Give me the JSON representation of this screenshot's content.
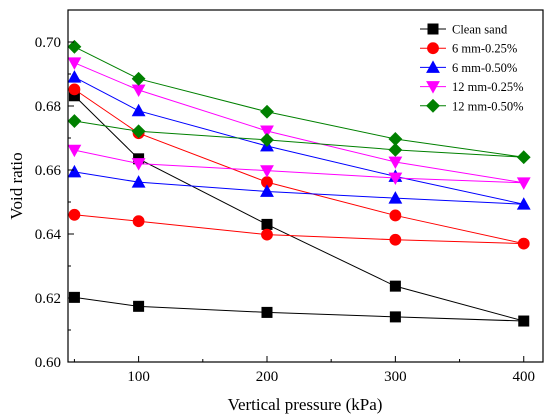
{
  "chart_data": {
    "type": "line",
    "xlabel": "Vertical pressure (kPa)",
    "ylabel": "Void ratio",
    "xlim": [
      45,
      415
    ],
    "ylim": [
      0.6,
      0.71
    ],
    "xticks": [
      100,
      200,
      300,
      400
    ],
    "xtick_labels": [
      "100",
      "200",
      "300",
      "400"
    ],
    "yticks": [
      0.6,
      0.62,
      0.64,
      0.66,
      0.68,
      0.7
    ],
    "ytick_labels": [
      "0.60",
      "0.62",
      "0.64",
      "0.66",
      "0.68",
      "0.70"
    ],
    "grid": false,
    "legend_position": "top-right",
    "series": [
      {
        "name": "Clean sand",
        "color": "#000000",
        "marker": "square",
        "x": [
          50,
          100,
          200,
          300,
          400,
          300,
          200,
          100,
          50
        ],
        "y": [
          0.6832,
          0.6635,
          0.643,
          0.6237,
          0.6128,
          0.6141,
          0.6155,
          0.6174,
          0.6202
        ]
      },
      {
        "name": "6 mm-0.25%",
        "color": "#ff0000",
        "marker": "circle",
        "x": [
          50,
          100,
          200,
          300,
          400,
          300,
          200,
          100,
          50
        ],
        "y": [
          0.6852,
          0.6715,
          0.6562,
          0.6458,
          0.637,
          0.6382,
          0.6398,
          0.644,
          0.646
        ]
      },
      {
        "name": "6 mm-0.50%",
        "color": "#0000ff",
        "marker": "triangle-up",
        "x": [
          50,
          100,
          200,
          300,
          400,
          300,
          200,
          100,
          50
        ],
        "y": [
          0.689,
          0.6785,
          0.6675,
          0.658,
          0.6493,
          0.6512,
          0.6533,
          0.6562,
          0.6594
        ]
      },
      {
        "name": "12 mm-0.25%",
        "color": "#ff00ff",
        "marker": "triangle-down",
        "x": [
          50,
          100,
          200,
          300,
          400,
          300,
          200,
          100,
          50
        ],
        "y": [
          0.6935,
          0.685,
          0.6722,
          0.6625,
          0.656,
          0.6575,
          0.6598,
          0.662,
          0.6662
        ]
      },
      {
        "name": "12 mm-0.50%",
        "color": "#008000",
        "marker": "diamond",
        "x": [
          50,
          100,
          200,
          300,
          400,
          300,
          200,
          100,
          50
        ],
        "y": [
          0.6985,
          0.6885,
          0.6782,
          0.6697,
          0.664,
          0.6663,
          0.6694,
          0.6721,
          0.6753
        ]
      }
    ]
  }
}
